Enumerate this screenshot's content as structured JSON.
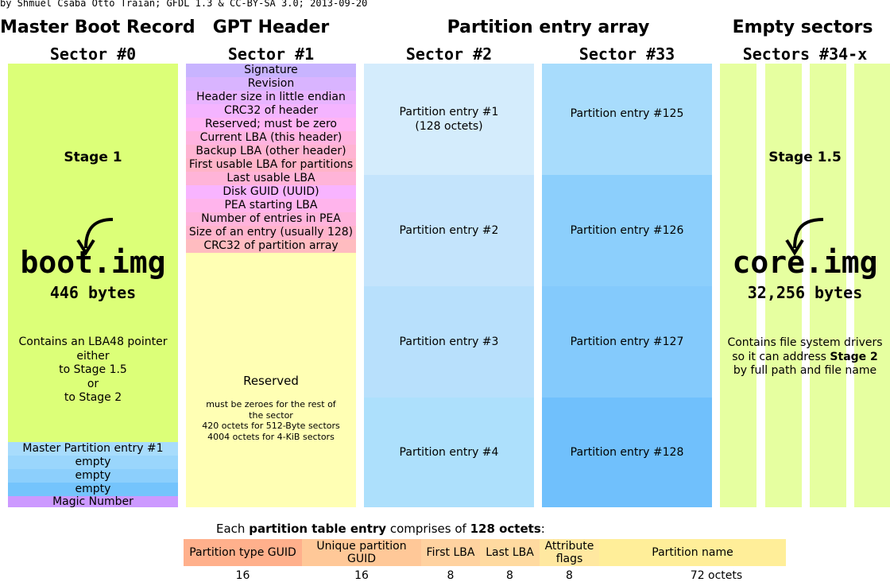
{
  "credit": "by Shmuel Csaba Otto Traian; GFDL 1.3 & CC-BY-SA 3.0; 2013-09-20",
  "headers": {
    "mbr": {
      "title": "Master Boot Record",
      "sector": "Sector #0"
    },
    "gpt": {
      "title": "GPT Header",
      "sector": "Sector #1"
    },
    "pea": {
      "title": "Partition entry array",
      "sector2": "Sector #2",
      "sector33": "Sector #33"
    },
    "empty": {
      "title": "Empty sectors",
      "sector": "Sectors #34-x"
    }
  },
  "mbr": {
    "stage": "Stage 1",
    "image": "boot.img",
    "bytes": "446 bytes",
    "note_lines": [
      "Contains an LBA48 pointer",
      "either",
      "to Stage 1.5",
      "or",
      "to Stage 2"
    ],
    "entries": [
      "Master Partition entry #1",
      "empty",
      "empty",
      "empty"
    ],
    "magic": "Magic Number"
  },
  "gpt": {
    "fields": [
      "Signature",
      "Revision",
      "Header size in little endian",
      "CRC32 of header",
      "Reserved; must be zero",
      "Current LBA (this header)",
      "Backup LBA (other header)",
      "First usable LBA for partitions",
      "Last usable LBA",
      "Disk GUID (UUID)",
      "PEA starting LBA",
      "Number of entries in PEA",
      "Size of an entry (usually 128)",
      "CRC32 of partition array"
    ],
    "reserved_title": "Reserved",
    "reserved_lines": [
      "must be zeroes for the rest of",
      "the sector",
      "420 octets for 512-Byte sectors",
      "4004 octets for 4-KiB sectors"
    ]
  },
  "pea": {
    "sector2": [
      {
        "line1": "Partition entry #1",
        "line2": "(128 octets)"
      },
      {
        "line1": "Partition entry #2",
        "line2": ""
      },
      {
        "line1": "Partition entry #3",
        "line2": ""
      },
      {
        "line1": "Partition entry #4",
        "line2": ""
      }
    ],
    "sector33": [
      "Partition entry #125",
      "Partition entry #126",
      "Partition entry #127",
      "Partition entry #128"
    ]
  },
  "empty": {
    "stage": "Stage 1.5",
    "image": "core.img",
    "bytes": "32,256 bytes",
    "note_line1": "Contains file system drivers",
    "note_line2_pre": "so it can address ",
    "note_line2_bold": "Stage 2",
    "note_line3": "by full path and file name"
  },
  "pte": {
    "caption_pre": "Each ",
    "caption_bold1": "partition table entry",
    "caption_mid": " comprises of ",
    "caption_bold2": "128 octets",
    "caption_post": ":",
    "fields": [
      {
        "label": "Partition type GUID",
        "size": "16",
        "color": "#ffb08c"
      },
      {
        "label": "Unique partition GUID",
        "size": "16",
        "color": "#ffc898"
      },
      {
        "label": "First LBA",
        "size": "8",
        "color": "#ffd2a0"
      },
      {
        "label": "Last LBA",
        "size": "8",
        "color": "#ffdaa0"
      },
      {
        "label": "Attribute flags",
        "size": "8",
        "color": "#ffe8a0"
      },
      {
        "label": "Partition name",
        "size": "72 octets",
        "color": "#ffee99"
      }
    ]
  },
  "colors": {
    "mbr_body": "#dcff78",
    "gpt_reserved": "#ffffb4",
    "sector2_shades": [
      "#d4ecfc",
      "#c4e4fc",
      "#b8e0fc",
      "#ade0fc"
    ],
    "sector33_shades": [
      "#a8dcfc",
      "#8ccffc",
      "#84cafc",
      "#70c0fc"
    ],
    "empty_bar": "#e6ffa0"
  }
}
